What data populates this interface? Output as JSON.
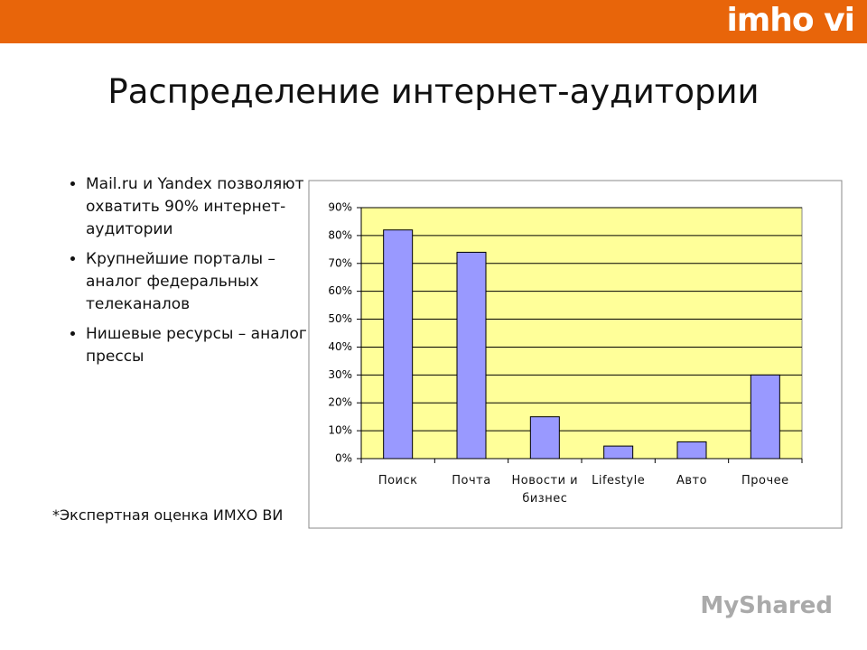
{
  "header": {
    "logo": "imho vi"
  },
  "title": "Распределение интернет-аудитории",
  "bullets": [
    "Mail.ru и Yandex позволяют охватить 90% интернет-аудитории",
    "Крупнейшие порталы – аналог федеральных телеканалов",
    "Нишевые ресурсы – аналог прессы"
  ],
  "footnote": "*Экспертная оценка ИМХО ВИ",
  "watermark": "MyShared",
  "chart_data": {
    "type": "bar",
    "categories": [
      "Поиск",
      "Почта",
      "Новости и бизнес",
      "Lifestyle",
      "Авто",
      "Прочее"
    ],
    "values": [
      82,
      74,
      15,
      4.5,
      6,
      30
    ],
    "color": "#9999ff",
    "plot_background": "#ffff99",
    "ylim": [
      0,
      90
    ],
    "yticks": [
      {
        "value": 0,
        "label": "0%"
      },
      {
        "value": 10,
        "label": "10%"
      },
      {
        "value": 20,
        "label": "20%"
      },
      {
        "value": 30,
        "label": "30%"
      },
      {
        "value": 40,
        "label": "40%"
      },
      {
        "value": 50,
        "label": "50%"
      },
      {
        "value": 60,
        "label": "60%"
      },
      {
        "value": 70,
        "label": "70%"
      },
      {
        "value": 80,
        "label": "80%"
      },
      {
        "value": 90,
        "label": "90%"
      }
    ],
    "grid": true
  }
}
